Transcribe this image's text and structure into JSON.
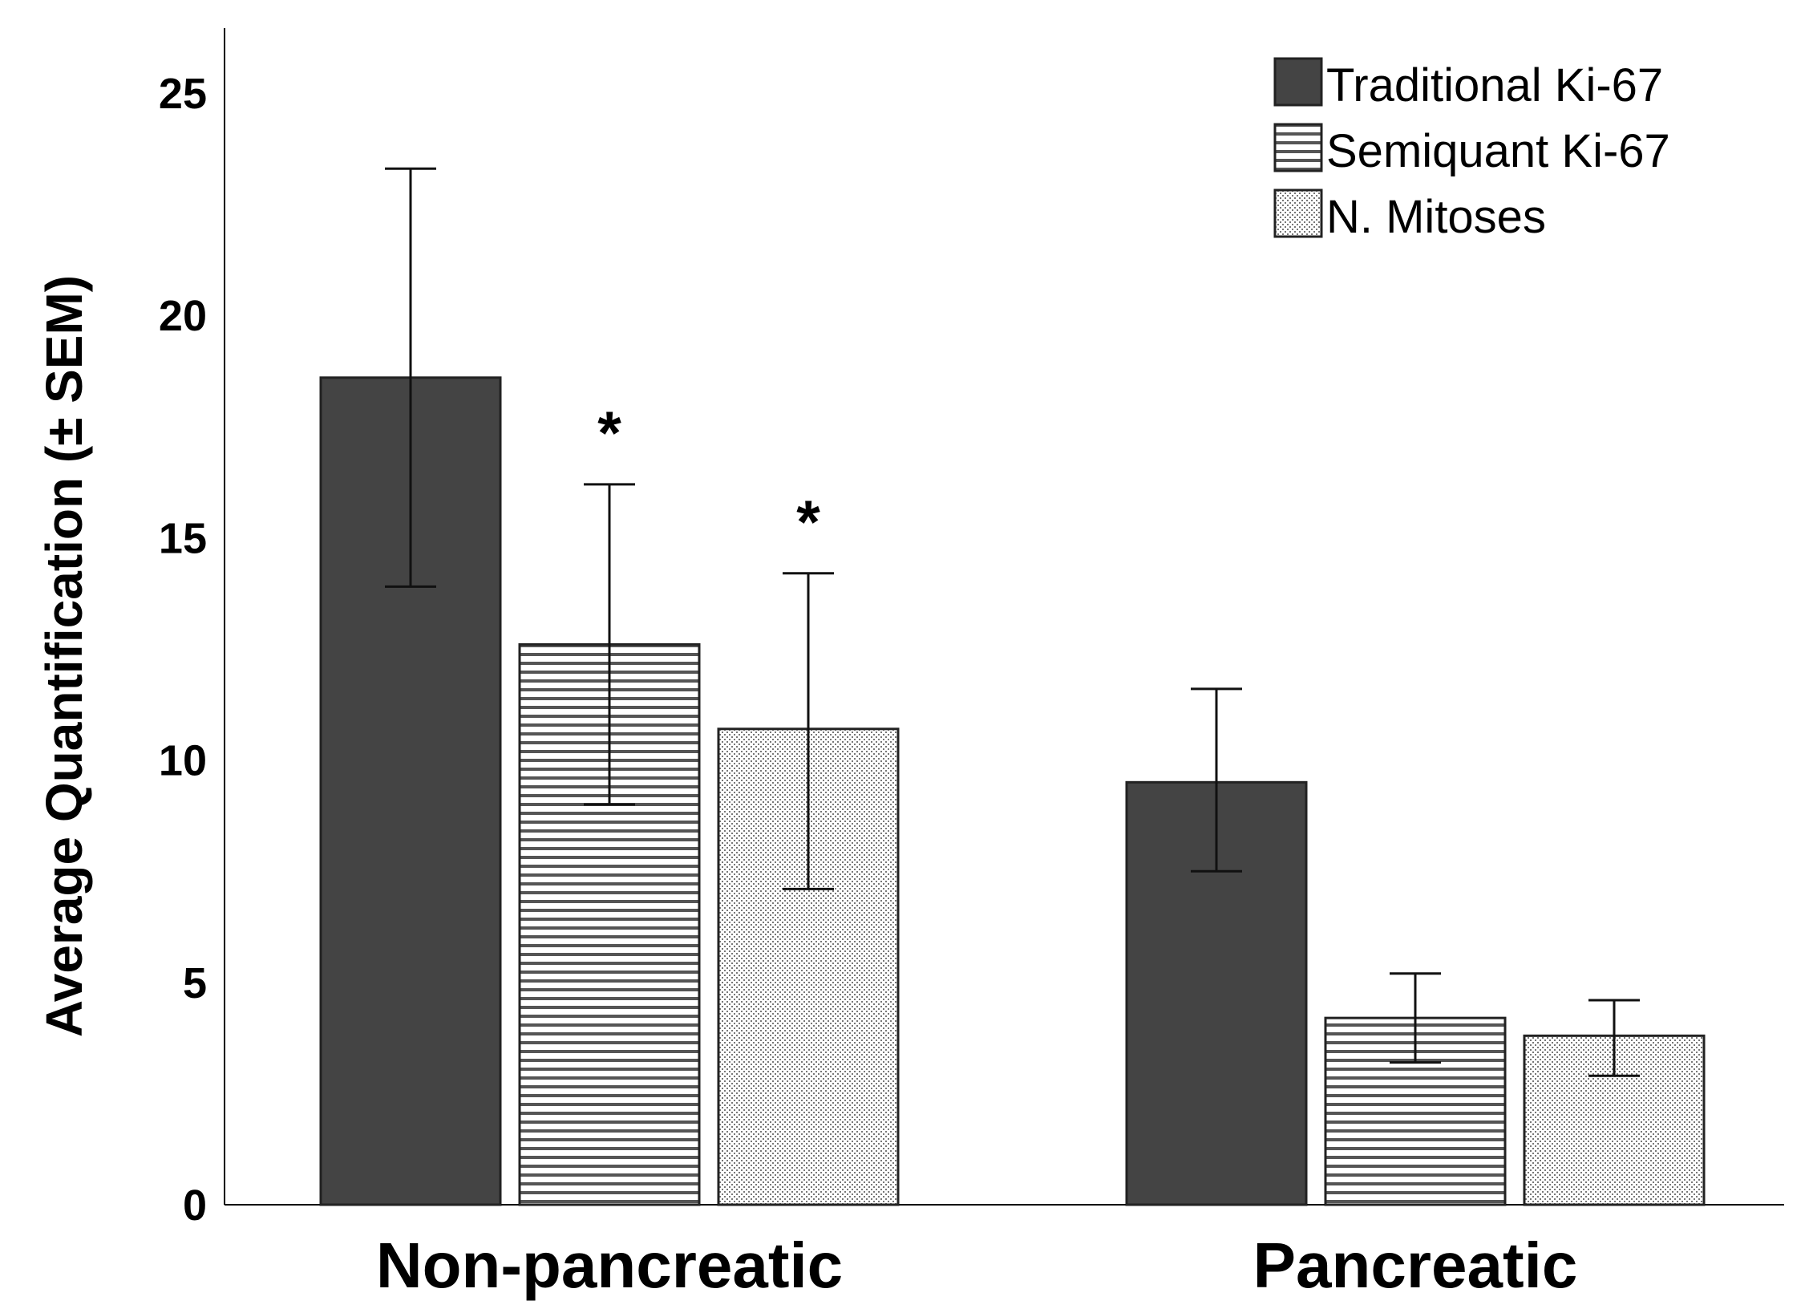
{
  "chart_data": {
    "type": "bar",
    "title": "",
    "xlabel": "",
    "ylabel": "Average Quantification (± SEM)",
    "ylim": [
      0,
      26.5
    ],
    "yticks": [
      0,
      5,
      10,
      15,
      20,
      25
    ],
    "categories": [
      "Non-pancreatic",
      "Pancreatic"
    ],
    "series": [
      {
        "name": "Traditional Ki-67",
        "values": [
          18.6,
          9.5
        ],
        "err_low": [
          13.9,
          7.5
        ],
        "err_high": [
          23.3,
          11.6
        ],
        "color": "#444444",
        "pattern": "solid",
        "sig": [
          "",
          ""
        ]
      },
      {
        "name": "Semiquant Ki-67",
        "values": [
          12.6,
          4.2
        ],
        "err_low": [
          9.0,
          3.2
        ],
        "err_high": [
          16.2,
          5.2
        ],
        "color": "#444444",
        "pattern": "horizontal-stripes",
        "sig": [
          "*",
          ""
        ]
      },
      {
        "name": "N. Mitoses",
        "values": [
          10.7,
          3.8
        ],
        "err_low": [
          7.1,
          2.9
        ],
        "err_high": [
          14.2,
          4.6
        ],
        "color": "#444444",
        "pattern": "dots",
        "sig": [
          "*",
          ""
        ]
      }
    ],
    "legend_position": "top-right",
    "grid": false
  }
}
